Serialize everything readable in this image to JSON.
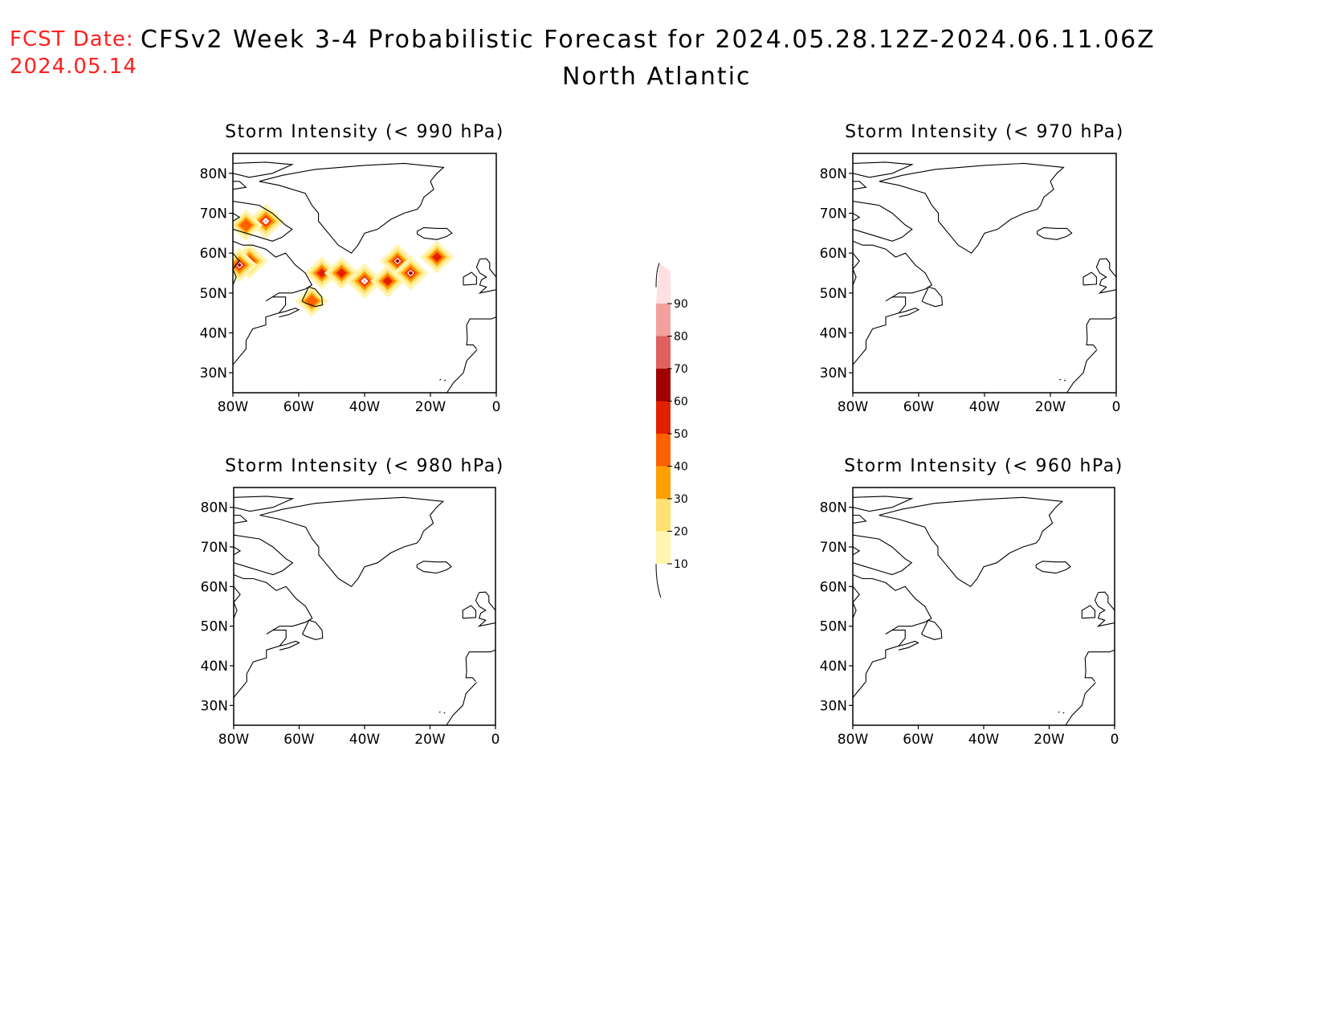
{
  "header": {
    "fcst_label": "FCST Date:",
    "fcst_date": "2024.05.14",
    "title": "CFSv2 Week 3-4 Probabilistic Forecast for 2024.05.28.12Z-2024.06.11.06Z",
    "subtitle": "North Atlantic"
  },
  "panels": [
    {
      "id": "p990",
      "title": "Storm Intensity (< 990 hPa)",
      "has_data": true
    },
    {
      "id": "p970",
      "title": "Storm Intensity (< 970 hPa)",
      "has_data": false
    },
    {
      "id": "p980",
      "title": "Storm Intensity (< 980 hPa)",
      "has_data": false
    },
    {
      "id": "p960",
      "title": "Storm Intensity (< 960 hPa)",
      "has_data": false
    }
  ],
  "axes": {
    "lat_labels": [
      "80N",
      "70N",
      "60N",
      "50N",
      "40N",
      "30N"
    ],
    "lon_labels": [
      "80W",
      "60W",
      "40W",
      "20W",
      "0"
    ],
    "lat_range": [
      25,
      85
    ],
    "lon_range": [
      -80,
      0
    ]
  },
  "colorbar": {
    "labels": [
      "10",
      "20",
      "30",
      "40",
      "50",
      "60",
      "70",
      "80",
      "90"
    ],
    "colors": [
      "#fff5b0",
      "#ffe070",
      "#ffa000",
      "#ff6000",
      "#e02000",
      "#a00000",
      "#e06060",
      "#f4a0a0",
      "#ffe0e0"
    ]
  },
  "storm_blobs": [
    {
      "lon": -75,
      "lat": 58,
      "level": 6
    },
    {
      "lon": -70,
      "lat": 68,
      "level": 6
    },
    {
      "lon": -78,
      "lat": 57,
      "level": 5
    },
    {
      "lon": -76,
      "lat": 67,
      "level": 3
    },
    {
      "lon": -53,
      "lat": 55,
      "level": 4
    },
    {
      "lon": -47,
      "lat": 55,
      "level": 4
    },
    {
      "lon": -40,
      "lat": 53,
      "level": 6
    },
    {
      "lon": -33,
      "lat": 53,
      "level": 4
    },
    {
      "lon": -30,
      "lat": 58,
      "level": 5
    },
    {
      "lon": -26,
      "lat": 55,
      "level": 5
    },
    {
      "lon": -18,
      "lat": 59,
      "level": 4
    },
    {
      "lon": -56,
      "lat": 48,
      "level": 3
    }
  ]
}
